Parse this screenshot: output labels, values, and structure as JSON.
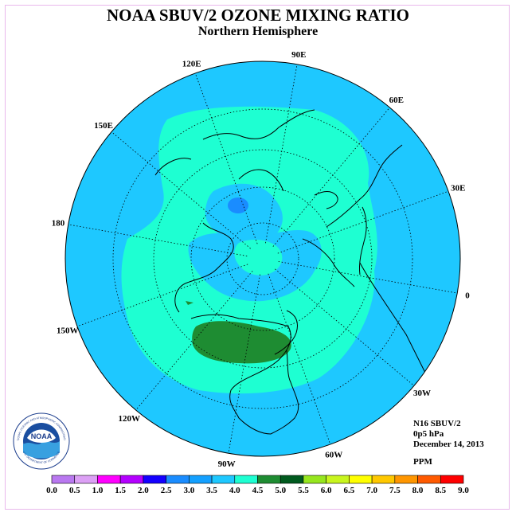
{
  "header": {
    "title": "NOAA SBUV/2 OZONE MIXING RATIO",
    "subtitle": "Northern Hemisphere"
  },
  "map": {
    "projection": "north-polar-stereographic",
    "ocean_background": "#1ec8ff",
    "longitude_labels": [
      "90E",
      "60E",
      "30E",
      "0",
      "30W",
      "60W",
      "90W",
      "120W",
      "150W",
      "180",
      "150E",
      "120E"
    ],
    "fields": {
      "level_3_5_to_4_0_color": "#1effd2",
      "level_2_5_to_3_0_color": "#1a8cff",
      "level_4_0_to_4_5_color": "#1e8c32",
      "coastline_color": "#000000"
    }
  },
  "info": {
    "instrument": "N16 SBUV/2",
    "level": "0p5 hPa",
    "date": "December 14, 2013",
    "units": "PPM"
  },
  "logo": {
    "text": "NOAA",
    "ring_text": "NATIONAL OCEANIC AND ATMOSPHERIC ADMINISTRATION",
    "ring_text_bottom": "U.S. DEPARTMENT OF COMMERCE"
  },
  "colorbar": {
    "ticks": [
      "0.0",
      "0.5",
      "1.0",
      "1.5",
      "2.0",
      "2.5",
      "3.0",
      "3.5",
      "4.0",
      "4.5",
      "5.0",
      "5.5",
      "6.0",
      "6.5",
      "7.0",
      "7.5",
      "8.0",
      "8.5",
      "9.0"
    ],
    "colors": [
      "#b978f0",
      "#dca0f5",
      "#ff00ff",
      "#b400ff",
      "#1400ff",
      "#1a8cff",
      "#14a0ff",
      "#1ec8ff",
      "#1effd2",
      "#1e8c32",
      "#005a1e",
      "#96e61e",
      "#c8f51e",
      "#ffff00",
      "#ffc800",
      "#ff9600",
      "#ff5a00",
      "#ff0000",
      "#7a4b32"
    ]
  }
}
